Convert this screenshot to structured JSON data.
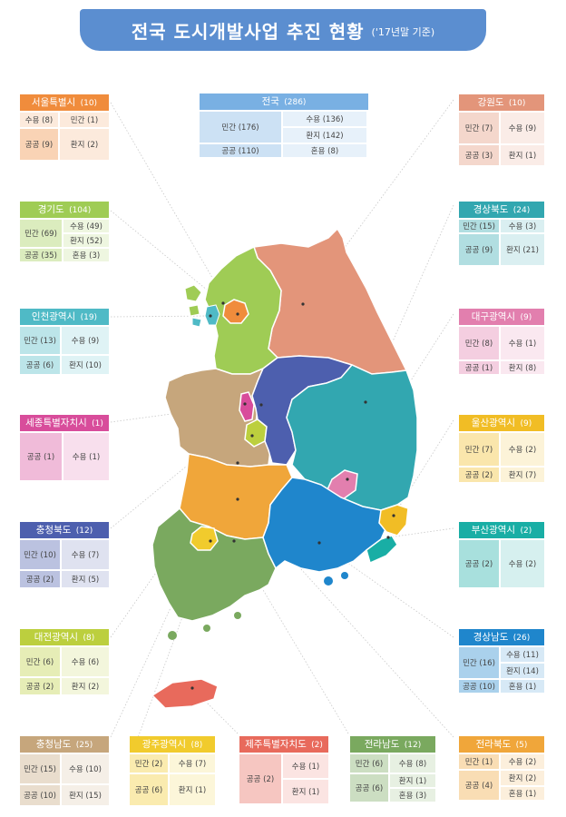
{
  "title": {
    "main": "전국 도시개발사업 추진 현황",
    "sub": "('17년말 기준)"
  },
  "cards": {
    "seoul": {
      "name": "서울특별시",
      "count": "(10)",
      "c1": "민간 (1)",
      "c2": "공공 (9)",
      "c3": "수용 (8)",
      "c4": "환지 (2)"
    },
    "national": {
      "name": "전국",
      "count": "(286)",
      "c1": "민간 (176)",
      "c2": "공공 (110)",
      "c3": "수용 (136)",
      "c4": "환지 (142)",
      "c5": "혼용 (8)"
    },
    "gangwon": {
      "name": "강원도",
      "count": "(10)",
      "c1": "민간 (7)",
      "c2": "공공 (3)",
      "c3": "수용 (9)",
      "c4": "환지 (1)"
    },
    "gyeonggi": {
      "name": "경기도",
      "count": "(104)",
      "c1": "민간 (69)",
      "c2": "공공 (35)",
      "c3": "수용 (49)",
      "c4": "환지 (52)",
      "c5": "혼용 (3)"
    },
    "gbuk": {
      "name": "경상북도",
      "count": "(24)",
      "c1": "민간 (15)",
      "c2": "공공 (9)",
      "c3": "수용 (3)",
      "c4": "환지 (21)"
    },
    "incheon": {
      "name": "인천광역시",
      "count": "(19)",
      "c1": "민간 (13)",
      "c2": "공공 (6)",
      "c3": "수용 (9)",
      "c4": "환지 (10)"
    },
    "daegu": {
      "name": "대구광역시",
      "count": "(9)",
      "c1": "민간 (8)",
      "c2": "공공 (1)",
      "c3": "수용 (1)",
      "c4": "환지 (8)"
    },
    "sejong": {
      "name": "세종특별자치시",
      "count": "(1)",
      "c1": "공공 (1)",
      "c3": "수용 (1)"
    },
    "ulsan": {
      "name": "울산광역시",
      "count": "(9)",
      "c1": "민간 (7)",
      "c2": "공공 (2)",
      "c3": "수용 (2)",
      "c4": "환지 (7)"
    },
    "cbuk": {
      "name": "충청북도",
      "count": "(12)",
      "c1": "민간 (10)",
      "c2": "공공 (2)",
      "c3": "수용 (7)",
      "c4": "환지 (5)"
    },
    "busan": {
      "name": "부산광역시",
      "count": "(2)",
      "c1": "공공 (2)",
      "c3": "수용 (2)"
    },
    "daejeon": {
      "name": "대전광역시",
      "count": "(8)",
      "c1": "민간 (6)",
      "c2": "공공 (2)",
      "c3": "수용 (6)",
      "c4": "환지 (2)"
    },
    "gnam": {
      "name": "경상남도",
      "count": "(26)",
      "c1": "민간 (16)",
      "c2": "공공 (10)",
      "c3": "수용 (11)",
      "c4": "환지 (14)",
      "c5": "혼용 (1)"
    },
    "cnam": {
      "name": "충청남도",
      "count": "(25)",
      "c1": "민간 (15)",
      "c2": "공공 (10)",
      "c3": "수용 (10)",
      "c4": "환지 (15)"
    },
    "gwangju": {
      "name": "광주광역시",
      "count": "(8)",
      "c1": "민간 (2)",
      "c2": "공공 (6)",
      "c3": "수용 (7)",
      "c4": "환지 (1)"
    },
    "jeju": {
      "name": "제주특별자치도",
      "count": "(2)",
      "c1": "공공 (2)",
      "c3": "수용 (1)",
      "c4": "환지 (1)"
    },
    "jnam": {
      "name": "전라남도",
      "count": "(12)",
      "c1": "민간 (6)",
      "c2": "공공 (6)",
      "c3": "수용 (8)",
      "c4": "환지 (1)",
      "c5": "혼용 (3)"
    },
    "jbuk": {
      "name": "전라북도",
      "count": "(5)",
      "c1": "민간 (1)",
      "c2": "공공 (4)",
      "c3": "수용 (2)",
      "c4": "환지 (2)",
      "c5": "혼용 (1)"
    }
  },
  "colors": {
    "title": "#5b8ed0",
    "seoul": "#f08c3c",
    "national": "#79b0e3",
    "gangwon": "#e3957a",
    "gyeonggi": "#9fcc55",
    "gbuk": "#32a7b0",
    "incheon": "#4fbac6",
    "daegu": "#e27fae",
    "sejong": "#d84d9b",
    "ulsan": "#f1bd25",
    "cbuk": "#4d5fae",
    "busan": "#19aea5",
    "daejeon": "#bccf3e",
    "gnam": "#1f86cc",
    "cnam": "#c6a67c",
    "gwangju": "#f1cb2d",
    "jeju": "#e86a5c",
    "jnam": "#7aa95f",
    "jbuk": "#f0a63a"
  }
}
